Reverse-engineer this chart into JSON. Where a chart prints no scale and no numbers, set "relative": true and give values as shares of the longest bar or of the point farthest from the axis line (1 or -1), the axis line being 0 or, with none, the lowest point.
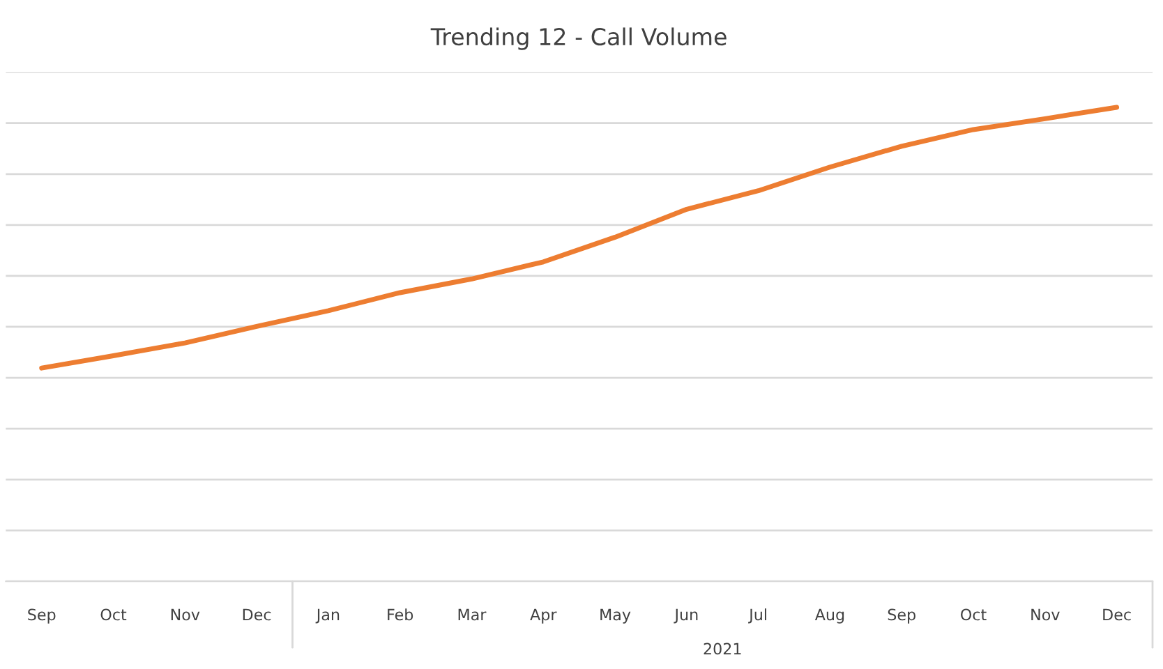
{
  "chart_data": {
    "type": "line",
    "title": "Trending 12 - Call Volume",
    "relative": true,
    "grid": "y",
    "legend": false,
    "marker": "none",
    "line_style": "solid",
    "categories": [
      "Sep",
      "Oct",
      "Nov",
      "Dec",
      "Jan",
      "Feb",
      "Mar",
      "Apr",
      "May",
      "Jun",
      "Jul",
      "Aug",
      "Sep",
      "Oct",
      "Nov",
      "Dec"
    ],
    "series": [
      {
        "color": "#ed7d31",
        "values": [
          0.45,
          0.476,
          0.503,
          0.538,
          0.571,
          0.609,
          0.638,
          0.674,
          0.726,
          0.785,
          0.824,
          0.874,
          0.918,
          0.953,
          0.976,
          1.0
        ]
      }
    ],
    "annotations": [
      "2021"
    ]
  }
}
